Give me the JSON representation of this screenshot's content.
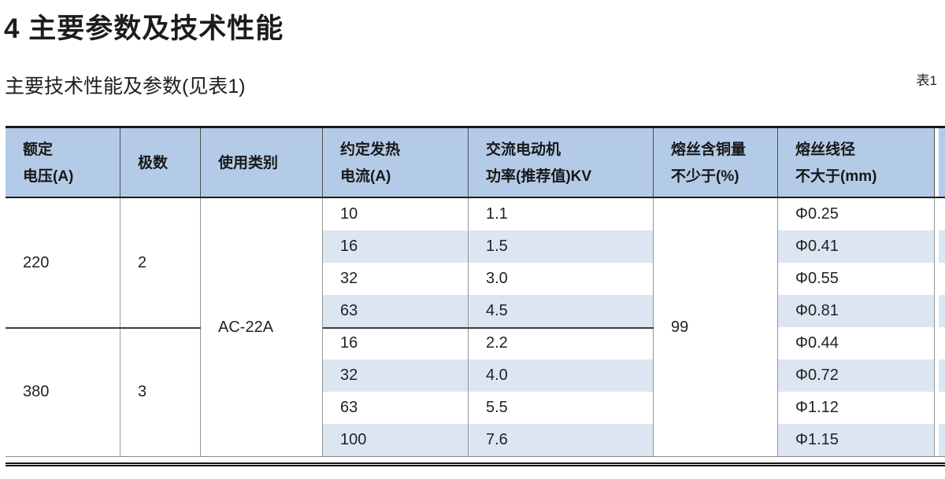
{
  "page": {
    "title": "4 主要参数及技术性能",
    "subtitle": "主要技术性能及参数(见表1)",
    "table_label": "表1"
  },
  "colors": {
    "header_bg": "#b4cbe7",
    "stripe_bg": "#dce6f3",
    "border_dark": "#171717",
    "line_gray": "#969696",
    "text": "#1d1d1d"
  },
  "table": {
    "headers": [
      {
        "line1": "额定",
        "line2": "电压(A)"
      },
      {
        "line1": "极数",
        "line2": ""
      },
      {
        "line1": "使用类别",
        "line2": ""
      },
      {
        "line1": "约定发热",
        "line2": "电流(A)"
      },
      {
        "line1": "交流电动机",
        "line2": "功率(推荐值)KV"
      },
      {
        "line1": "熔丝含铜量",
        "line2": "不少于(%)"
      },
      {
        "line1": "熔丝线径",
        "line2": "不大于(mm)"
      }
    ],
    "usage_category": "AC-22A",
    "copper_content": "99",
    "groups": [
      {
        "voltage": "220",
        "poles": "2",
        "rows": [
          {
            "current": "10",
            "power": "1.1",
            "diameter": "Φ0.25"
          },
          {
            "current": "16",
            "power": "1.5",
            "diameter": "Φ0.41"
          },
          {
            "current": "32",
            "power": "3.0",
            "diameter": "Φ0.55"
          },
          {
            "current": "63",
            "power": "4.5",
            "diameter": "Φ0.81"
          }
        ]
      },
      {
        "voltage": "380",
        "poles": "3",
        "rows": [
          {
            "current": "16",
            "power": "2.2",
            "diameter": "Φ0.44"
          },
          {
            "current": "32",
            "power": "4.0",
            "diameter": "Φ0.72"
          },
          {
            "current": "63",
            "power": "5.5",
            "diameter": "Φ1.12"
          },
          {
            "current": "100",
            "power": "7.6",
            "diameter": "Φ1.15"
          }
        ]
      }
    ]
  }
}
